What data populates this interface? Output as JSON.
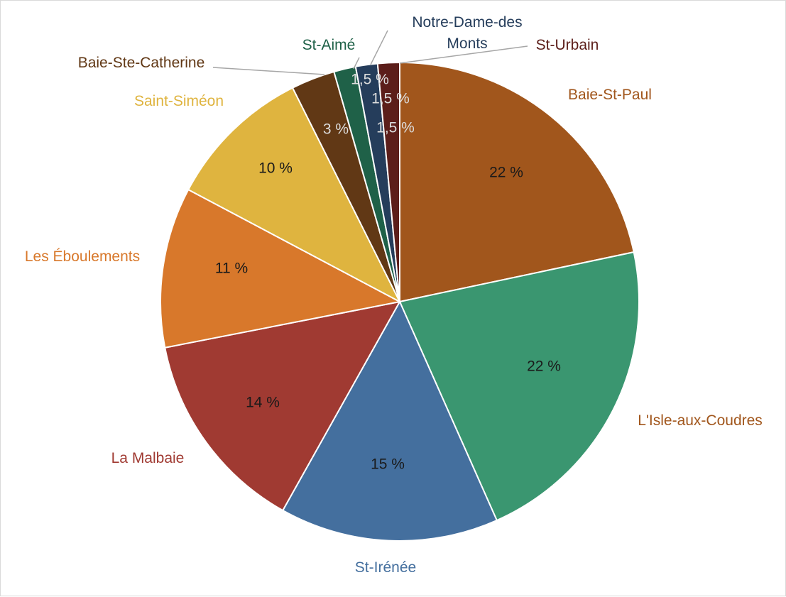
{
  "chart_data": {
    "type": "pie",
    "title": "",
    "unit": "%",
    "slices": [
      {
        "category": "Baie-St-Paul",
        "value": 22,
        "label": "22 %",
        "color": "#a1561c",
        "label_color": "#a1561c",
        "value_color": "#1a1a1a"
      },
      {
        "category": "L'Isle-aux-Coudres",
        "value": 22,
        "label": "22 %",
        "color": "#3a9670",
        "label_color": "#a1561c",
        "value_color": "#1a1a1a"
      },
      {
        "category": "St-Irénée",
        "value": 15,
        "label": "15 %",
        "color": "#446f9e",
        "label_color": "#446f9e",
        "value_color": "#1a1a1a"
      },
      {
        "category": "La Malbaie",
        "value": 14,
        "label": "14 %",
        "color": "#a03a32",
        "label_color": "#a03a32",
        "value_color": "#1a1a1a"
      },
      {
        "category": "Les Éboulements",
        "value": 11,
        "label": "11 %",
        "color": "#d8782b",
        "label_color": "#d8782b",
        "value_color": "#1a1a1a"
      },
      {
        "category": "Saint-Siméon",
        "value": 10,
        "label": "10 %",
        "color": "#dfb43f",
        "label_color": "#dfb43f",
        "value_color": "#1a1a1a"
      },
      {
        "category": "Baie-Ste-Catherine",
        "value": 3,
        "label": "3 %",
        "color": "#613815",
        "label_color": "#613815",
        "value_color": "#dcdcdc"
      },
      {
        "category": "St-Aimé",
        "value": 1.5,
        "label": "1,5 %",
        "color": "#1f6148",
        "label_color": "#1f6148",
        "value_color": "#dcdcdc"
      },
      {
        "category": "Notre-Dame-des Monts",
        "value": 1.5,
        "label": "1,5 %",
        "color": "#253d5b",
        "label_color": "#253d5b",
        "value_color": "#dcdcdc"
      },
      {
        "category": "St-Urbain",
        "value": 1.5,
        "label": "1,5 %",
        "color": "#5c1e1a",
        "label_color": "#5c1e1a",
        "value_color": "#dcdcdc"
      }
    ]
  }
}
